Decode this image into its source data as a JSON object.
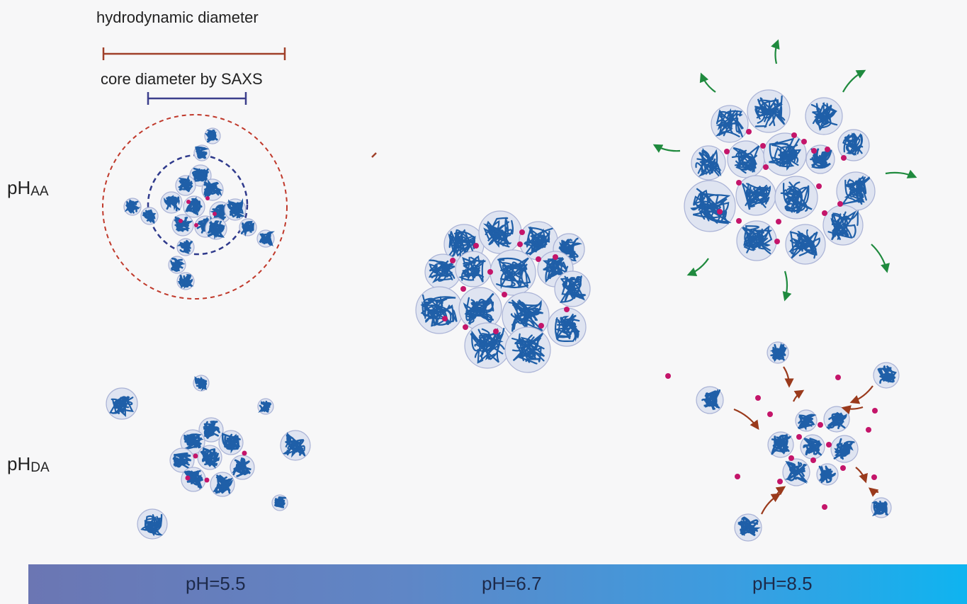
{
  "legend": {
    "hydrodynamic_label": "hydrodynamic diameter",
    "core_label": "core diameter by SAXS"
  },
  "rows": {
    "top": {
      "prefix": "pH",
      "sub": "AA"
    },
    "bottom": {
      "prefix": "pH",
      "sub": "DA"
    }
  },
  "scale": {
    "stops": [
      {
        "label": "pH=5.5"
      },
      {
        "label": "pH=6.7"
      },
      {
        "label": "pH=8.5"
      }
    ]
  },
  "colors": {
    "hydrodynamic_bar": "#a0402a",
    "core_bar": "#3c3f8c",
    "micelle_fill": "#dfe4f1",
    "micelle_stroke": "#aab3d6",
    "chain": "#1f5fa8",
    "ion_dot": "#c4156a",
    "expansion_arrow": "#1f8a3e",
    "reassembly_arrow": "#9a3a1c",
    "outer_ring": "#c0392b",
    "inner_ring": "#2f3a8c"
  }
}
